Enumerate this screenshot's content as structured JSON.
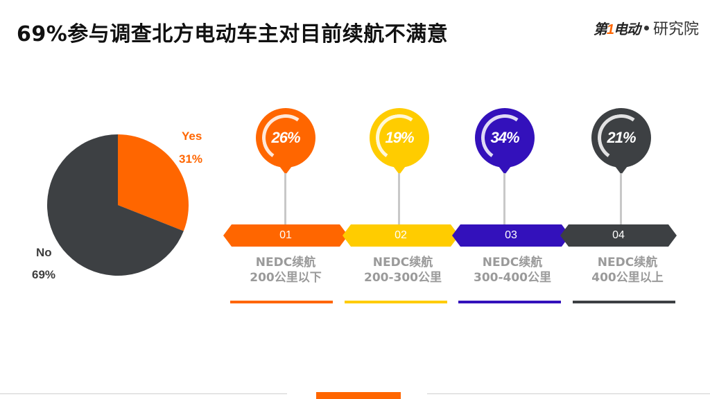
{
  "title": "69%参与调查北方电动车主对目前续航不满意",
  "logo": {
    "mark_prefix": "第",
    "mark_one": "1",
    "mark_suffix": "电动",
    "text": "研究院"
  },
  "colors": {
    "orange": "#ff6600",
    "yellow": "#ffcc00",
    "purple": "#3311bb",
    "dark": "#3d4043"
  },
  "chart_data": {
    "type": "pie",
    "slices": [
      {
        "label": "Yes",
        "value": 31,
        "value_label": "31%",
        "color": "#ff6600"
      },
      {
        "label": "No",
        "value": 69,
        "value_label": "69%",
        "color": "#3d4043"
      }
    ]
  },
  "steps": [
    {
      "pct": "26%",
      "num": "01",
      "line1": "NEDC续航",
      "line2": "200公里以下",
      "color": "#ff6600"
    },
    {
      "pct": "19%",
      "num": "02",
      "line1": "NEDC续航",
      "line2": "200-300公里",
      "color": "#ffcc00"
    },
    {
      "pct": "34%",
      "num": "03",
      "line1": "NEDC续航",
      "line2": "300-400公里",
      "color": "#3311bb"
    },
    {
      "pct": "21%",
      "num": "04",
      "line1": "NEDC续航",
      "line2": "400公里以上",
      "color": "#3d4043"
    }
  ]
}
